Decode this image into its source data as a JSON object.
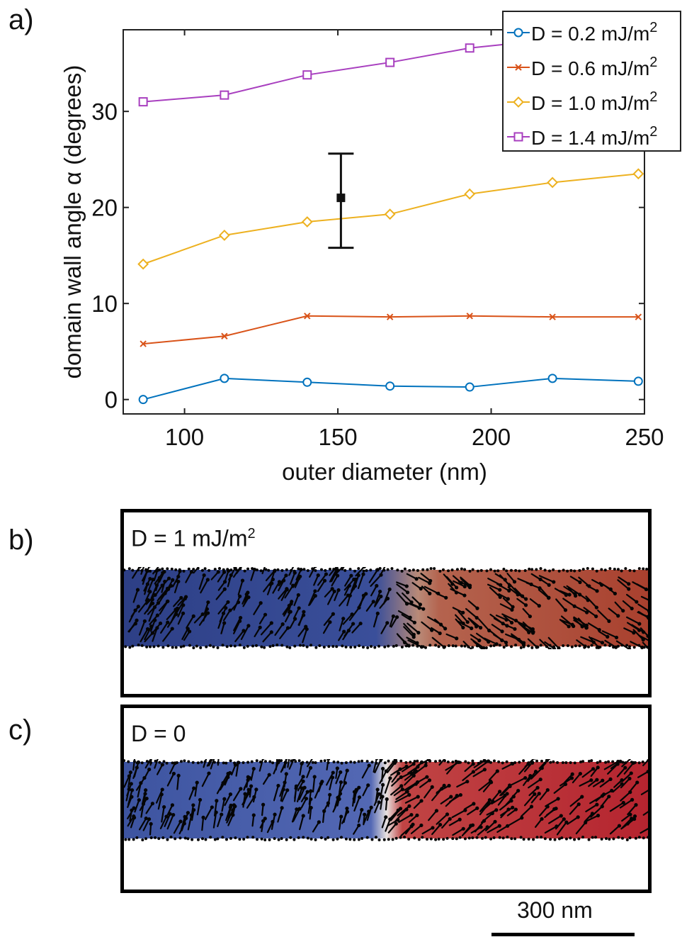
{
  "panels": {
    "a": "a)",
    "b": "b)",
    "c": "c)"
  },
  "chart_data": {
    "type": "line",
    "xlabel": "outer diameter (nm)",
    "ylabel": "domain wall angle α (degrees)",
    "xlim": [
      80,
      250
    ],
    "ylim": [
      -1.5,
      38.5
    ],
    "xticks": [
      100,
      150,
      200,
      250
    ],
    "yticks": [
      0,
      10,
      20,
      30
    ],
    "grid": false,
    "legend_position": "top-right",
    "x": [
      86.5,
      113,
      140,
      167,
      193,
      220,
      248
    ],
    "series": [
      {
        "name": "D = 0.2 mJ/m",
        "sup": "2",
        "marker": "circle",
        "color": "#0072bd",
        "values": [
          0,
          2.2,
          1.8,
          1.4,
          1.3,
          2.2,
          1.9
        ]
      },
      {
        "name": "D = 0.6 mJ/m",
        "sup": "2",
        "marker": "x",
        "color": "#d95319",
        "values": [
          5.8,
          6.6,
          8.7,
          8.6,
          8.7,
          8.6,
          8.6
        ]
      },
      {
        "name": "D = 1.0 mJ/m",
        "sup": "2",
        "marker": "diamond",
        "color": "#edb120",
        "values": [
          14.1,
          17.1,
          18.5,
          19.3,
          21.4,
          22.6,
          23.5
        ]
      },
      {
        "name": "D = 1.4 mJ/m",
        "sup": "2",
        "marker": "square",
        "color": "#a83fbf",
        "values": [
          31,
          31.7,
          33.8,
          35.1,
          36.6,
          37.5,
          38
        ]
      }
    ],
    "experimental_point": {
      "x": 151,
      "y": 21,
      "y_low": 15.8,
      "y_high": 25.6
    }
  },
  "sim_b": {
    "title": "D = 1 mJ/m",
    "sup": "2"
  },
  "sim_c": {
    "title": "D = 0"
  },
  "scale_bar": {
    "label": "300 nm"
  }
}
